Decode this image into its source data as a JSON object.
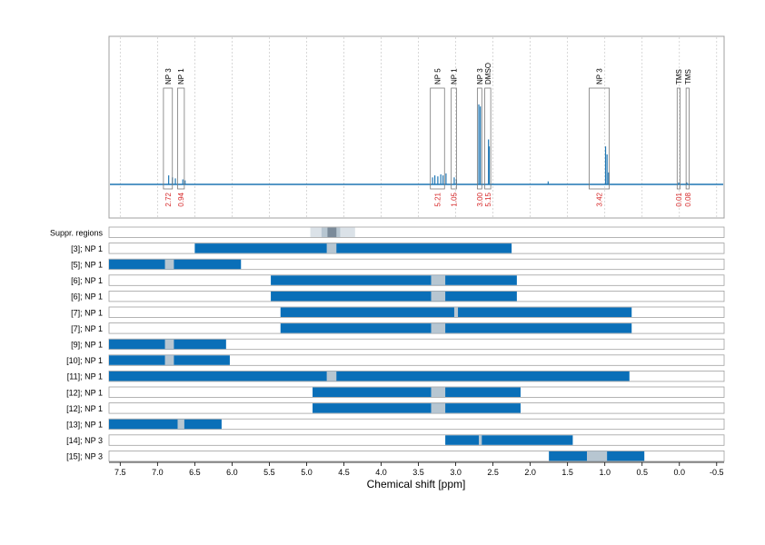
{
  "chart_data": {
    "type": "bar",
    "xlabel": "Chemical shift [ppm]",
    "x_axis": {
      "range": [
        7.65,
        -0.6
      ],
      "reversed": true,
      "ticks": [
        "7.5",
        "7.0",
        "6.5",
        "6.0",
        "5.5",
        "5.0",
        "4.5",
        "4.0",
        "3.5",
        "3.0",
        "2.5",
        "2.0",
        "1.5",
        "1.0",
        "0.5",
        "0.0",
        "-0.5"
      ],
      "tick_values": [
        7.5,
        7.0,
        6.5,
        6.0,
        5.5,
        5.0,
        4.5,
        4.0,
        3.5,
        3.0,
        2.5,
        2.0,
        1.5,
        1.0,
        0.5,
        0.0,
        -0.5
      ],
      "grid": true
    },
    "spectrum": {
      "color": "#1f77b4",
      "peaks": [
        {
          "x": 6.85,
          "h": 0.09
        },
        {
          "x": 6.8,
          "h": 0.07
        },
        {
          "x": 6.76,
          "h": 0.06
        },
        {
          "x": 6.66,
          "h": 0.05
        },
        {
          "x": 6.63,
          "h": 0.04
        },
        {
          "x": 3.31,
          "h": 0.07
        },
        {
          "x": 3.28,
          "h": 0.09
        },
        {
          "x": 3.24,
          "h": 0.08
        },
        {
          "x": 3.2,
          "h": 0.1
        },
        {
          "x": 3.17,
          "h": 0.09
        },
        {
          "x": 3.13,
          "h": 0.11
        },
        {
          "x": 3.02,
          "h": 0.07
        },
        {
          "x": 2.99,
          "h": 0.05
        },
        {
          "x": 2.69,
          "h": 0.8
        },
        {
          "x": 2.67,
          "h": 0.78
        },
        {
          "x": 2.56,
          "h": 0.45
        },
        {
          "x": 2.55,
          "h": 0.38
        },
        {
          "x": 1.76,
          "h": 0.03
        },
        {
          "x": 0.99,
          "h": 0.38
        },
        {
          "x": 0.97,
          "h": 0.3
        },
        {
          "x": 0.95,
          "h": 0.12
        },
        {
          "x": 0.01,
          "h": 0.02
        },
        {
          "x": -0.1,
          "h": 0.02
        }
      ]
    },
    "regions": [
      {
        "label": "NP 3",
        "integral": "2.72",
        "from": 6.92,
        "to": 6.8
      },
      {
        "label": "NP 1",
        "integral": "0.94",
        "from": 6.73,
        "to": 6.64
      },
      {
        "label": "NP 5",
        "integral": "5.21",
        "from": 3.34,
        "to": 3.15
      },
      {
        "label": "NP 1",
        "integral": "1.05",
        "from": 3.06,
        "to": 2.99
      },
      {
        "label": "NP 3",
        "integral": "3.00",
        "from": 2.71,
        "to": 2.65
      },
      {
        "label": "DMSO",
        "integral": "5.15",
        "from": 2.61,
        "to": 2.53
      },
      {
        "label": "NP 3",
        "integral": "3.42",
        "from": 1.21,
        "to": 0.94
      },
      {
        "label": "TMS",
        "integral": "0.01",
        "from": 0.03,
        "to": -0.01
      },
      {
        "label": "TMS",
        "integral": "0.08",
        "from": -0.09,
        "to": -0.13
      }
    ],
    "suppression_row": {
      "label": "Suppr. regions",
      "bands": [
        {
          "from": 4.95,
          "to": 4.35,
          "shade": "light"
        },
        {
          "from": 4.8,
          "to": 4.55,
          "shade": "mid"
        },
        {
          "from": 4.72,
          "to": 4.6,
          "shade": "dark"
        }
      ]
    },
    "rows": [
      {
        "label": "[3]; NP 1",
        "from": 6.5,
        "to": 2.25,
        "gaps": [
          [
            4.73,
            4.6
          ]
        ]
      },
      {
        "label": "[5]; NP 1",
        "from": 7.65,
        "to": 5.88,
        "gaps": [
          [
            6.9,
            6.78
          ]
        ]
      },
      {
        "label": "[6]; NP 1",
        "from": 5.48,
        "to": 2.18,
        "gaps": [
          [
            3.33,
            3.14
          ]
        ]
      },
      {
        "label": "[6]; NP 1",
        "from": 5.48,
        "to": 2.18,
        "gaps": [
          [
            3.33,
            3.14
          ]
        ]
      },
      {
        "label": "[7]; NP 1",
        "from": 5.35,
        "to": 0.64,
        "gaps": [
          [
            3.02,
            2.97
          ]
        ]
      },
      {
        "label": "[7]; NP 1",
        "from": 5.35,
        "to": 0.64,
        "gaps": [
          [
            3.33,
            3.14
          ]
        ]
      },
      {
        "label": "[9]; NP 1",
        "from": 7.65,
        "to": 6.08,
        "gaps": [
          [
            6.9,
            6.78
          ]
        ]
      },
      {
        "label": "[10]; NP 1",
        "from": 7.65,
        "to": 6.03,
        "gaps": [
          [
            6.9,
            6.78
          ]
        ]
      },
      {
        "label": "[11]; NP 1",
        "from": 7.65,
        "to": 0.67,
        "gaps": [
          [
            4.73,
            4.6
          ]
        ]
      },
      {
        "label": "[12]; NP 1",
        "from": 4.92,
        "to": 2.13,
        "gaps": [
          [
            3.33,
            3.14
          ]
        ]
      },
      {
        "label": "[12]; NP 1",
        "from": 4.92,
        "to": 2.13,
        "gaps": [
          [
            3.33,
            3.14
          ]
        ]
      },
      {
        "label": "[13]; NP 1",
        "from": 7.65,
        "to": 6.14,
        "gaps": [
          [
            6.73,
            6.64
          ]
        ]
      },
      {
        "label": "[14]; NP 3",
        "from": 3.14,
        "to": 1.43,
        "gaps": [
          [
            2.69,
            2.65
          ]
        ]
      },
      {
        "label": "[15]; NP 3",
        "from": 1.75,
        "to": 0.47,
        "gaps": [
          [
            1.24,
            0.97
          ]
        ]
      }
    ],
    "colors": {
      "bar": "#0a6fb8",
      "gap": "#b7c6d1",
      "supp_light": "#dbe2e8",
      "supp_mid": "#b7c6d1",
      "supp_dark": "#7a8a99",
      "integral": "#d62728",
      "grid": "#c8c8c8",
      "frame": "#a0a0a0"
    }
  }
}
